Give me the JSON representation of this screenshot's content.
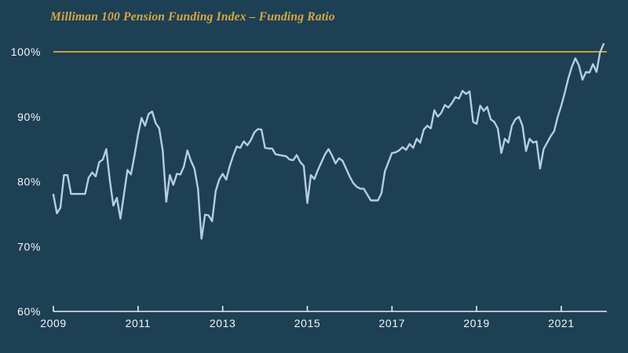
{
  "title": "Milliman 100 Pension Funding Index – Funding Ratio",
  "colors": {
    "background": "#1e4054",
    "series_line": "#b6cde2",
    "reference_line": "#c9a03c",
    "title_text": "#d9a844",
    "axis_text": "#f2f6f9",
    "axis_line": "#e9eef2"
  },
  "chart_data": {
    "type": "line",
    "title": "Milliman 100 Pension Funding Index – Funding Ratio",
    "series_name": "Funding Ratio",
    "unit": "%",
    "frequency": "monthly",
    "x_start": "2009-01",
    "x_end": "2022-01",
    "ylim": [
      60,
      103
    ],
    "grid": "off",
    "legend": "none",
    "reference_line": {
      "value": 100
    },
    "y_tick_values": [
      100,
      90,
      80,
      70,
      60
    ],
    "y_tick_labels": [
      "100%",
      "90%",
      "80%",
      "70%",
      "60%"
    ],
    "x_tick_years": [
      2009,
      2011,
      2013,
      2015,
      2017,
      2019,
      2021
    ],
    "x_tick_labels": [
      "2009",
      "2011",
      "2013",
      "2015",
      "2017",
      "2019",
      "2021"
    ],
    "values": [
      78.0,
      75.1,
      76.0,
      81.0,
      81.0,
      78.1,
      78.1,
      78.1,
      78.1,
      78.1,
      80.6,
      81.4,
      80.8,
      83.0,
      83.4,
      85.0,
      80.2,
      76.3,
      77.5,
      74.3,
      78.0,
      81.8,
      81.1,
      84.0,
      87.2,
      89.8,
      88.6,
      90.4,
      90.8,
      89.0,
      88.2,
      84.8,
      76.9,
      81.0,
      79.5,
      81.2,
      81.1,
      82.3,
      84.8,
      83.2,
      82.0,
      78.9,
      71.2,
      74.9,
      74.8,
      73.9,
      78.5,
      80.3,
      81.2,
      80.3,
      82.4,
      84.0,
      85.4,
      85.2,
      86.2,
      85.6,
      86.4,
      87.6,
      88.1,
      88.0,
      85.2,
      85.1,
      85.1,
      84.2,
      84.1,
      84.0,
      83.9,
      83.4,
      83.3,
      84.1,
      83.0,
      82.4,
      76.7,
      81.0,
      80.4,
      81.8,
      83.0,
      84.2,
      85.0,
      84.0,
      82.8,
      83.6,
      83.2,
      82.0,
      80.8,
      79.8,
      79.2,
      78.9,
      78.9,
      78.0,
      77.1,
      77.1,
      77.1,
      78.2,
      81.6,
      83.0,
      84.4,
      84.5,
      84.8,
      85.3,
      84.9,
      85.8,
      85.2,
      86.6,
      86.0,
      88.0,
      88.6,
      88.2,
      91.0,
      90.0,
      90.6,
      91.8,
      91.4,
      92.1,
      93.0,
      92.8,
      94.0,
      93.5,
      93.9,
      89.2,
      88.9,
      91.7,
      90.9,
      91.5,
      89.6,
      89.2,
      88.2,
      84.4,
      86.6,
      86.0,
      88.6,
      89.6,
      90.0,
      88.6,
      84.7,
      86.6,
      86.0,
      86.2,
      82.0,
      85.0,
      86.0,
      87.0,
      87.8,
      90.0,
      91.7,
      93.7,
      95.9,
      97.7,
      99.0,
      97.9,
      95.7,
      96.9,
      96.8,
      98.1,
      96.9,
      99.9,
      101.2
    ]
  }
}
